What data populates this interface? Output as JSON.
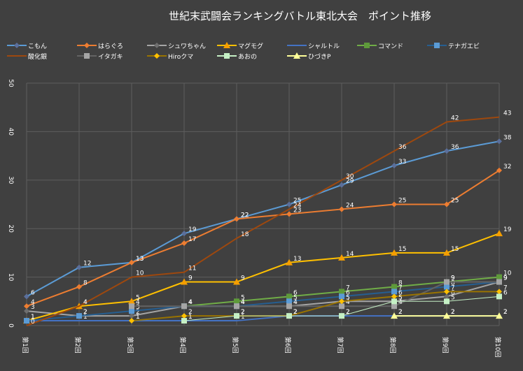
{
  "chart_data": {
    "type": "line",
    "title": "世紀末武闘会ランキングバトル東北大会　ポイント推移",
    "xlabel": "",
    "ylabel": "",
    "categories": [
      "第1回",
      "第2回",
      "第3回",
      "第4回",
      "第5回",
      "第6回",
      "第7回",
      "第8回",
      "第9回",
      "第10回"
    ],
    "yticks": [
      "0",
      "10",
      "20",
      "30",
      "40",
      "50"
    ],
    "ylim": [
      0,
      50
    ],
    "grid": true,
    "legend_position": "top",
    "series": [
      {
        "name": "こもん",
        "color": "#5b9bd5",
        "marker": "diamond",
        "marker_color": "#5b6f9b",
        "values": [
          6,
          12,
          13,
          19,
          22,
          25,
          29,
          33,
          36,
          38
        ]
      },
      {
        "name": "はらぐろ",
        "color": "#ed7d31",
        "marker": "diamond",
        "marker_color": "#ed7d31",
        "values": [
          4,
          8,
          13,
          17,
          22,
          23,
          24,
          25,
          25,
          32
        ]
      },
      {
        "name": "シュワちゃん",
        "color": "#a5a5a5",
        "marker": "diamond",
        "marker_color": "#6f6f6f",
        "values": [
          3,
          2,
          2,
          4,
          4,
          4,
          5,
          5,
          6,
          9
        ]
      },
      {
        "name": "マグモグ",
        "color": "#ffc000",
        "marker": "triangle",
        "marker_color": "#f59e00",
        "values": [
          1,
          4,
          5,
          9,
          9,
          13,
          14,
          15,
          15,
          19
        ]
      },
      {
        "name": "シャルトル",
        "color": "#4472c4",
        "marker": "none",
        "marker_color": "#4472c4",
        "values": [
          1,
          1,
          1,
          1,
          1,
          2,
          2,
          2,
          2,
          2
        ]
      },
      {
        "name": "コマンド",
        "color": "#70ad47",
        "marker": "square",
        "marker_color": "#5e9a3a",
        "values": [
          null,
          null,
          null,
          4,
          5,
          6,
          7,
          8,
          9,
          10
        ]
      },
      {
        "name": "テナガエビ",
        "color": "#255e91",
        "marker": "square",
        "marker_color": "#5b9bd5",
        "values": [
          1,
          2,
          3,
          4,
          4,
          5,
          6,
          7,
          8,
          9
        ]
      },
      {
        "name": "酸化銀",
        "color": "#9e480e",
        "marker": "none",
        "marker_color": "#9e480e",
        "values": [
          0,
          4,
          10,
          11,
          18,
          24,
          30,
          36,
          42,
          43
        ]
      },
      {
        "name": "イタガキ",
        "color": "#636363",
        "marker": "square",
        "marker_color": "#a5a5a5",
        "values": [
          null,
          null,
          4,
          4,
          4,
          4,
          4,
          4,
          9,
          9
        ]
      },
      {
        "name": "Hiroクマ",
        "color": "#997300",
        "marker": "diamond",
        "marker_color": "#ffc000",
        "values": [
          null,
          null,
          1,
          2,
          2,
          2,
          5,
          6,
          7,
          7
        ]
      },
      {
        "name": "あおの",
        "color": "#c5f0c5",
        "marker": "square",
        "marker_color": "#c5f0c5",
        "values": [
          null,
          null,
          null,
          1,
          2,
          2,
          2,
          5,
          5,
          6
        ]
      },
      {
        "name": "ひづきP",
        "color": "#ffff99",
        "marker": "triangle",
        "marker_color": "#ffff99",
        "values": [
          null,
          null,
          null,
          null,
          null,
          null,
          null,
          2,
          2,
          2
        ]
      }
    ]
  }
}
